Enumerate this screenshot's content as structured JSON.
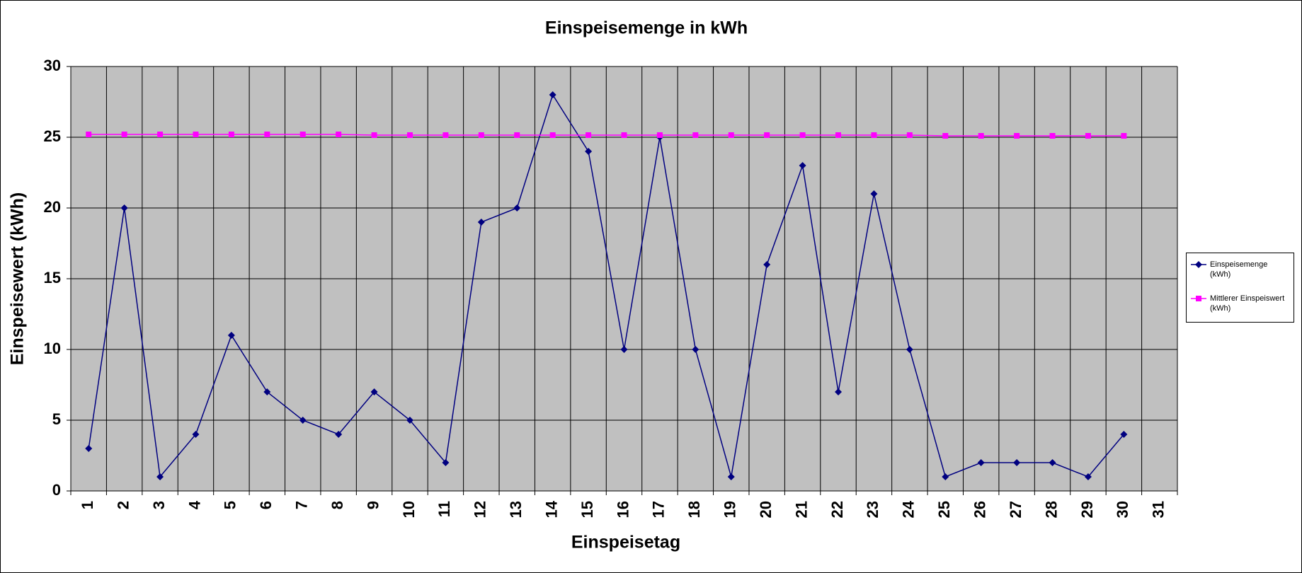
{
  "chart_data": {
    "type": "line",
    "title": "Einspeisemenge in kWh",
    "xlabel": "Einspeisetag",
    "ylabel": "Einspeisewert  (kWh)",
    "categories": [
      "1",
      "2",
      "3",
      "4",
      "5",
      "6",
      "7",
      "8",
      "9",
      "10",
      "11",
      "12",
      "13",
      "14",
      "15",
      "16",
      "17",
      "18",
      "19",
      "20",
      "21",
      "22",
      "23",
      "24",
      "25",
      "26",
      "27",
      "28",
      "29",
      "30",
      "31"
    ],
    "series": [
      {
        "name": "Einspeisemenge (kWh)",
        "color": "#000080",
        "marker": "diamond",
        "values": [
          3,
          20,
          1,
          4,
          11,
          7,
          5,
          4,
          7,
          5,
          2,
          19,
          20,
          28,
          24,
          10,
          25,
          10,
          1,
          16,
          23,
          7,
          21,
          10,
          1,
          2,
          2,
          2,
          1,
          4,
          null
        ]
      },
      {
        "name": "Mittlerer Einspeiswert (kWh)",
        "color": "#ff00ff",
        "marker": "square",
        "values": [
          25.2,
          25.2,
          25.2,
          25.2,
          25.2,
          25.2,
          25.2,
          25.2,
          25.15,
          25.15,
          25.15,
          25.15,
          25.15,
          25.15,
          25.15,
          25.15,
          25.15,
          25.15,
          25.15,
          25.15,
          25.15,
          25.15,
          25.15,
          25.15,
          25.1,
          25.1,
          25.1,
          25.1,
          25.1,
          25.1,
          null
        ]
      }
    ],
    "ylim": [
      0,
      30
    ],
    "yticks": [
      0,
      5,
      10,
      15,
      20,
      25,
      30
    ],
    "grid": true,
    "legend": "right"
  }
}
